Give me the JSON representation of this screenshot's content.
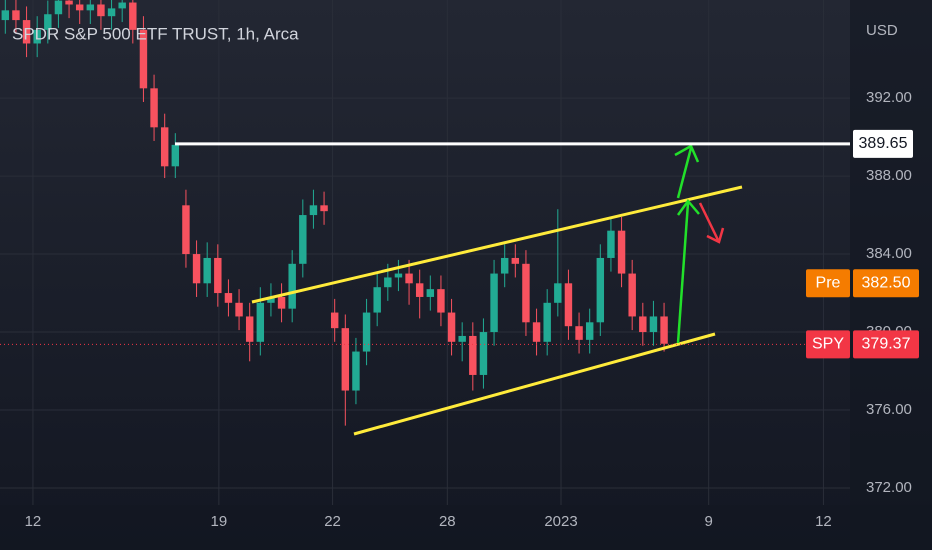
{
  "chart_data": {
    "type": "candlestick",
    "title": "SPDR S&P 500 ETF TRUST, 1h, Arca",
    "currency": "USD",
    "up_color": "#22ab94",
    "down_color": "#f7525f",
    "grid": true,
    "x": [
      0,
      1,
      2,
      3,
      4,
      5,
      6,
      7,
      8,
      9,
      10,
      11,
      12,
      13,
      14,
      15,
      16,
      17,
      18,
      19,
      20,
      21,
      22,
      23,
      24,
      25,
      26,
      27,
      28,
      29,
      30,
      31,
      32,
      33,
      34,
      35,
      36,
      37,
      38,
      39,
      40,
      41,
      42,
      43,
      44,
      45,
      46,
      47,
      48,
      49,
      50,
      51,
      52,
      53,
      54,
      55,
      56,
      57,
      58,
      59,
      60,
      61,
      62
    ],
    "open": [
      396,
      396.5,
      396,
      394.8,
      395.5,
      396.3,
      397,
      396.8,
      396.5,
      396.8,
      396.2,
      396.6,
      396.9,
      395.5,
      392.5,
      390.5,
      388.5,
      386.5,
      384,
      382.5,
      383.8,
      382,
      381.5,
      380.8,
      379.5,
      381.5,
      381.8,
      381.2,
      383.5,
      386,
      386.5,
      381,
      380.2,
      377,
      379,
      381,
      382.3,
      382.8,
      383,
      382.5,
      381.8,
      382.2,
      381,
      379.5,
      379.8,
      377.8,
      380,
      383,
      383.8,
      383.5,
      380.5,
      379.5,
      381.5,
      382.5,
      380.3,
      379.6,
      380.5,
      383.8,
      385.2,
      383,
      380.8,
      380,
      380.8
    ],
    "high": [
      397.2,
      397.2,
      396.7,
      396.2,
      397,
      397.7,
      397.7,
      397.5,
      397.5,
      397.5,
      397.3,
      397.6,
      397.6,
      396.2,
      393.2,
      391.2,
      390.2,
      387.3,
      384.7,
      384.6,
      384.5,
      382.7,
      382.2,
      381.5,
      382.3,
      382.5,
      382.5,
      384.2,
      386.8,
      387.3,
      387.2,
      381.7,
      380.9,
      379.7,
      381.7,
      383,
      383.5,
      383.7,
      383.7,
      383.2,
      382.9,
      382.9,
      381.7,
      380.5,
      380.5,
      380.7,
      383.7,
      384.5,
      384.5,
      384.2,
      381.2,
      382.2,
      386.3,
      383.2,
      381,
      381.2,
      384.5,
      385.9,
      385.9,
      383.7,
      381.5,
      381.6,
      381.5
    ],
    "low": [
      395.3,
      395.3,
      394.1,
      394.1,
      394.8,
      395.6,
      396.1,
      395.8,
      395.8,
      395.5,
      395.5,
      395.9,
      394.8,
      391.8,
      389.8,
      387.9,
      387.9,
      383.3,
      381.8,
      381.8,
      381.3,
      380.8,
      380.1,
      378.5,
      378.8,
      380.8,
      380.5,
      380.5,
      382.8,
      385.3,
      385.5,
      379.5,
      375.2,
      376.3,
      378.3,
      380.3,
      381.6,
      382.1,
      381.4,
      380.7,
      381.1,
      380.3,
      378.8,
      378.5,
      377,
      377.1,
      379.3,
      382.3,
      382.8,
      379.8,
      378.8,
      378.8,
      380.8,
      379.6,
      378.9,
      378.9,
      379.8,
      383.1,
      382.3,
      380.1,
      379.3,
      379.3,
      379
    ],
    "close": [
      396.5,
      396,
      394.8,
      395.5,
      396.3,
      397,
      396.8,
      396.5,
      396.8,
      396.2,
      396.6,
      396.9,
      395.5,
      392.5,
      390.5,
      388.5,
      389.6,
      384,
      382.5,
      383.8,
      382,
      381.5,
      380.8,
      379.5,
      381.5,
      381.8,
      381.2,
      383.5,
      386,
      386.5,
      386.2,
      380.2,
      377,
      379,
      381,
      382.3,
      382.8,
      383,
      382.5,
      381.8,
      382.2,
      381,
      379.5,
      379.8,
      377.8,
      380,
      383,
      383.8,
      383.5,
      380.5,
      379.5,
      381.5,
      382.5,
      380.3,
      379.6,
      380.5,
      383.8,
      385.2,
      383,
      380.8,
      380,
      380.8,
      379.4
    ],
    "xlim": [
      -0.5,
      79.5
    ],
    "xticks": [
      {
        "value": 2.6,
        "label": "12"
      },
      {
        "value": 20.1,
        "label": "19"
      },
      {
        "value": 30.8,
        "label": "22"
      },
      {
        "value": 41.6,
        "label": "28"
      },
      {
        "value": 52.3,
        "label": "2023"
      },
      {
        "value": 66.2,
        "label": "9"
      },
      {
        "value": 77,
        "label": "12"
      }
    ],
    "ylim": [
      371.13,
      397.03
    ],
    "yticks": [
      {
        "value": 372,
        "label": "372.00"
      },
      {
        "value": 376,
        "label": "376.00"
      },
      {
        "value": 380,
        "label": "380.00"
      },
      {
        "value": 384,
        "label": "384.00"
      },
      {
        "value": 388,
        "label": "388.00"
      },
      {
        "value": 392,
        "label": "392.00"
      }
    ],
    "level_line": {
      "value": 389.65,
      "label": "389.65",
      "color": "#ffffff"
    },
    "price_labels": [
      {
        "name": "Pre",
        "value": 382.5,
        "label": "382.50",
        "color": "#f57c00"
      },
      {
        "name": "SPY",
        "value": 379.37,
        "label": "379.37",
        "color": "#f23645"
      }
    ]
  }
}
